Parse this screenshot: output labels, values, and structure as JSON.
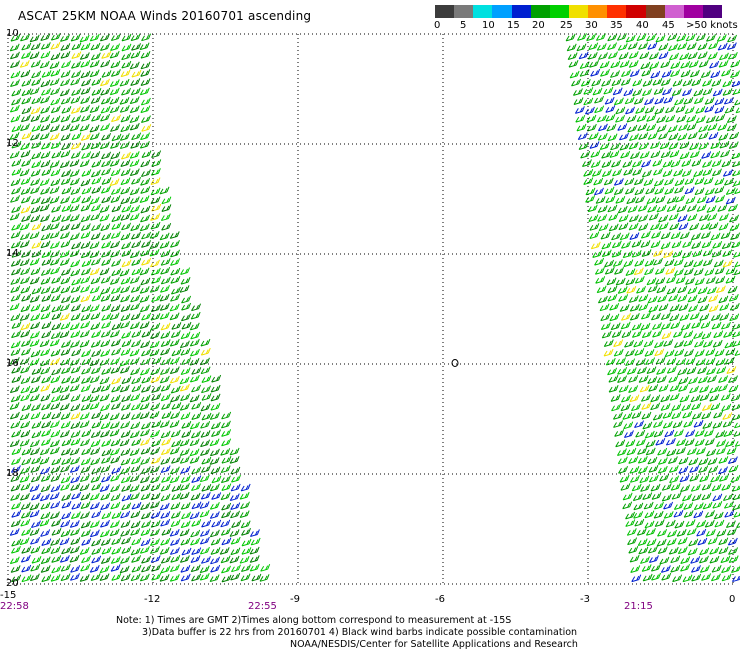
{
  "title": "ASCAT 25KM NOAA Winds 20160701 ascending",
  "legend": {
    "colors": [
      "#3c3c3c",
      "#7a7a7a",
      "#00e0e0",
      "#00a0ff",
      "#0020d0",
      "#00a000",
      "#00d000",
      "#f0e000",
      "#ff9000",
      "#ff3000",
      "#d00000",
      "#804020",
      "#d060d0",
      "#a000a0",
      "#500080"
    ],
    "labels": [
      "0",
      "5",
      "10",
      "15",
      "20",
      "25",
      "30",
      "35",
      "40",
      "45",
      ">50 knots"
    ]
  },
  "map": {
    "lat_labels": [
      "10",
      "12",
      "14",
      "16",
      "18",
      "20"
    ],
    "lon_labels": [
      "-15",
      "-12",
      "-9",
      "-6",
      "-3",
      "0"
    ],
    "marker": "0"
  },
  "times": [
    "22:58",
    "22:55",
    "21:15"
  ],
  "notes": [
    "Note: 1) Times are GMT 2)Times along bottom correspond to measurement at -15S",
    "3)Data buffer is 22 hrs from 20160701 4) Black wind barbs indicate possible contamination",
    "NOAA/NESDIS/Center for Satellite Applications and Research"
  ]
}
